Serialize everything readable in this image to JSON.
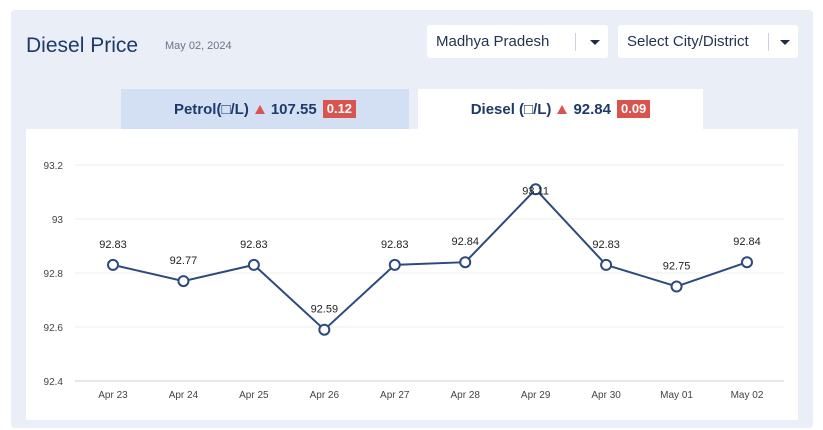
{
  "header": {
    "title": "Diesel Price",
    "date": "May 02, 2024"
  },
  "filters": {
    "state": "Madhya Pradesh",
    "city": "Select City/District"
  },
  "tabs": {
    "petrol": {
      "label": "Petrol(□/L)",
      "price": "107.55",
      "change": "0.12"
    },
    "diesel": {
      "label": "Diesel (□/L)",
      "price": "92.84",
      "change": "0.09"
    }
  },
  "colors": {
    "line": "#2c4a7e",
    "change_up": "#d9534f",
    "brand": "#1e3a6a"
  },
  "icons": [
    "chevron-down-icon",
    "triangle-up-icon"
  ],
  "chart_data": {
    "type": "line",
    "categories": [
      "Apr 23",
      "Apr 24",
      "Apr 25",
      "Apr 26",
      "Apr 27",
      "Apr 28",
      "Apr 29",
      "Apr 30",
      "May 01",
      "May 02"
    ],
    "values": [
      92.83,
      92.77,
      92.83,
      92.59,
      92.83,
      92.84,
      93.11,
      92.83,
      92.75,
      92.84
    ],
    "ylim": [
      92.4,
      93.2
    ],
    "yticks": [
      "92.4",
      "92.6",
      "92.8",
      "93",
      "93.2"
    ],
    "title": "",
    "xlabel": "",
    "ylabel": "",
    "grid": true
  }
}
